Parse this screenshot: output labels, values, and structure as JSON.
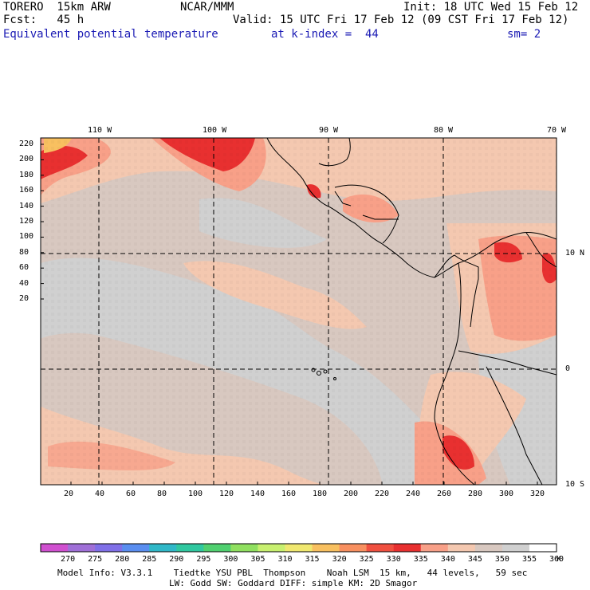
{
  "header": {
    "model": "TORERO  15km ARW",
    "center": "NCAR/MMM",
    "init": "Init: 18 UTC Wed 15 Feb 12",
    "fcst": "Fcst:   45 h",
    "valid": "Valid: 15 UTC Fri 17 Feb 12 (09 CST Fri 17 Feb 12)",
    "field": "Equivalent potential temperature",
    "level": "at k-index =  44",
    "smooth": "sm= 2"
  },
  "map": {
    "lon_labels": [
      "110 W",
      "100 W",
      "90 W",
      "80 W",
      "70 W"
    ],
    "lat_labels": [
      "10 N",
      "0",
      "10 S"
    ],
    "y_ticks": [
      "220",
      "200",
      "180",
      "160",
      "140",
      "120",
      "100",
      "80",
      "60",
      "40",
      "20"
    ],
    "x_ticks": [
      "20",
      "40",
      "60",
      "80",
      "100",
      "120",
      "140",
      "160",
      "180",
      "200",
      "220",
      "240",
      "260",
      "280",
      "300",
      "320"
    ]
  },
  "colorbar": {
    "labels": [
      "270",
      "275",
      "280",
      "285",
      "290",
      "295",
      "300",
      "305",
      "310",
      "315",
      "320",
      "325",
      "330",
      "335",
      "340",
      "345",
      "350",
      "355",
      "360"
    ],
    "unit": "K",
    "colors": [
      "#d050d0",
      "#a070d8",
      "#8070e8",
      "#5a8ef0",
      "#30b8c8",
      "#30c8a0",
      "#50d070",
      "#90e060",
      "#c8f070",
      "#f0e870",
      "#f8c060",
      "#f89060",
      "#f05040",
      "#e83030",
      "#f8a088",
      "#f4c8b0",
      "#d8c8c0",
      "#d0d0d0",
      "#ffffff"
    ]
  },
  "footer": {
    "line1": "Model Info: V3.3.1    Tiedtke YSU PBL  Thompson    Noah LSM  15 km,   44 levels,   59 sec",
    "line2": "LW: Godd SW: Goddard DIFF: simple KM: 2D Smagor"
  }
}
